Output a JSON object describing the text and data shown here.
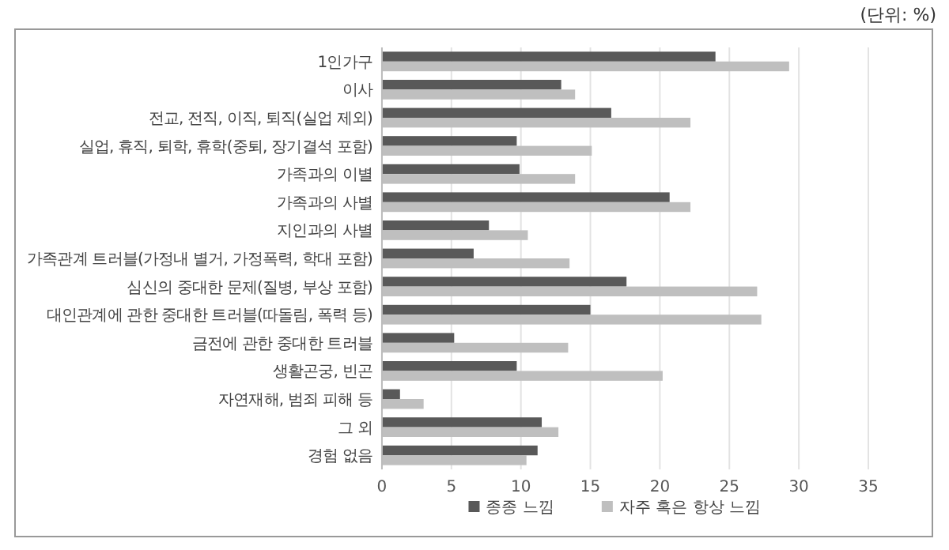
{
  "chart_data": {
    "type": "bar",
    "orientation": "horizontal",
    "categories": [
      "1인가구",
      "이사",
      "전교, 전직, 이직, 퇴직(실업 제외)",
      "실업, 휴직, 퇴학, 휴학(중퇴, 장기결석 포함)",
      "가족과의 이별",
      "가족과의 사별",
      "지인과의 사별",
      "가족관계 트러블(가정내 별거, 가정폭력, 학대 포함)",
      "심신의 중대한 문제(질병, 부상 포함)",
      "대인관계에 관한 중대한 트러블(따돌림, 폭력 등)",
      "금전에 관한 중대한 트러블",
      "생활곤궁, 빈곤",
      "자연재해, 범죄 피해 등",
      "그 외",
      "경험 없음"
    ],
    "series": [
      {
        "name": "종종 느낌",
        "color": "#595959",
        "values": [
          24.0,
          12.9,
          16.5,
          9.7,
          9.9,
          20.7,
          7.7,
          6.6,
          17.6,
          15.0,
          5.2,
          9.7,
          1.3,
          11.5,
          11.2
        ]
      },
      {
        "name": "자주 혹은 항상 느낌",
        "color": "#bfbfbf",
        "values": [
          29.3,
          13.9,
          22.2,
          15.1,
          13.9,
          22.2,
          10.5,
          13.5,
          27.0,
          27.3,
          13.4,
          20.2,
          3.0,
          12.7,
          10.4
        ]
      }
    ],
    "xlim": [
      0,
      35
    ],
    "xticks": [
      0,
      5,
      10,
      15,
      20,
      25,
      30,
      35
    ],
    "grid": "x",
    "legend": "bottom",
    "annotations": [
      "(단위: %)"
    ]
  }
}
